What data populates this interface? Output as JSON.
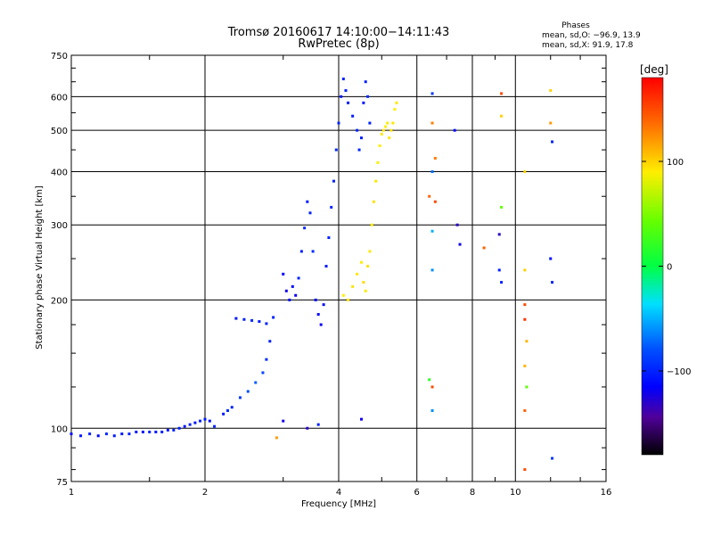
{
  "chart_data": {
    "type": "scatter",
    "title": "Tromsø 20160617 14:10:00−14:11:43",
    "subtitle": "RwPretec (8p)",
    "xlabel": "Frequency [MHz]",
    "ylabel": "Stationary phase Virtual Height [km]",
    "x_scale": "log",
    "y_scale": "log",
    "xlim": [
      1,
      16
    ],
    "ylim": [
      75,
      750
    ],
    "x_ticks": [
      1,
      2,
      4,
      6,
      8,
      10,
      16
    ],
    "y_ticks": [
      75,
      100,
      200,
      300,
      400,
      500,
      600,
      750
    ],
    "grid": true,
    "phases_box": {
      "title": "Phases",
      "line1": "mean, sd,O: −96.9, 13.9",
      "line2": "mean, sd,X:  91.9, 17.8"
    },
    "colorbar": {
      "label": "[deg]",
      "range": [
        -180,
        180
      ],
      "ticks": [
        100,
        0,
        -100
      ]
    },
    "series": [
      {
        "description": "O-mode traces (phase ≈ −100°)",
        "points": [
          [
            1.0,
            97,
            -110
          ],
          [
            1.05,
            96,
            -105
          ],
          [
            1.1,
            97,
            -100
          ],
          [
            1.15,
            96,
            -112
          ],
          [
            1.2,
            97,
            -98
          ],
          [
            1.25,
            96,
            -104
          ],
          [
            1.3,
            97,
            -106
          ],
          [
            1.35,
            97,
            -100
          ],
          [
            1.4,
            98,
            -103
          ],
          [
            1.45,
            98,
            -108
          ],
          [
            1.5,
            98,
            -100
          ],
          [
            1.55,
            98,
            -104
          ],
          [
            1.6,
            98,
            -99
          ],
          [
            1.65,
            99,
            -106
          ],
          [
            1.7,
            99,
            -100
          ],
          [
            1.75,
            100,
            -102
          ],
          [
            1.8,
            101,
            -104
          ],
          [
            1.85,
            102,
            -100
          ],
          [
            1.9,
            103,
            -106
          ],
          [
            1.95,
            104,
            -100
          ],
          [
            2.0,
            105,
            -102
          ],
          [
            2.05,
            104,
            -108
          ],
          [
            2.1,
            101,
            -100
          ],
          [
            2.2,
            108,
            -104
          ],
          [
            2.25,
            110,
            -96
          ],
          [
            2.3,
            112,
            -100
          ],
          [
            2.4,
            118,
            -90
          ],
          [
            2.5,
            122,
            -80
          ],
          [
            2.6,
            128,
            -75
          ],
          [
            2.7,
            135,
            -85
          ],
          [
            2.75,
            145,
            -95
          ],
          [
            2.8,
            160,
            -100
          ],
          [
            2.35,
            181,
            -104
          ],
          [
            2.45,
            180,
            -100
          ],
          [
            2.55,
            179,
            -96
          ],
          [
            2.65,
            178,
            -104
          ],
          [
            2.75,
            176,
            -100
          ],
          [
            2.85,
            182,
            -100
          ],
          [
            3.0,
            230,
            -115
          ],
          [
            3.05,
            210,
            -120
          ],
          [
            3.1,
            200,
            -110
          ],
          [
            3.15,
            215,
            -112
          ],
          [
            3.2,
            205,
            -118
          ],
          [
            3.25,
            225,
            -100
          ],
          [
            3.3,
            260,
            -102
          ],
          [
            3.35,
            295,
            -98
          ],
          [
            3.4,
            340,
            -104
          ],
          [
            3.45,
            320,
            -100
          ],
          [
            3.5,
            260,
            -96
          ],
          [
            3.55,
            200,
            -110
          ],
          [
            3.6,
            185,
            -112
          ],
          [
            3.65,
            175,
            -118
          ],
          [
            3.7,
            195,
            -110
          ],
          [
            3.75,
            240,
            -104
          ],
          [
            3.8,
            280,
            -100
          ],
          [
            3.85,
            330,
            -98
          ],
          [
            3.9,
            380,
            -100
          ],
          [
            3.95,
            450,
            -96
          ],
          [
            4.0,
            520,
            -100
          ],
          [
            4.05,
            600,
            -104
          ],
          [
            4.1,
            660,
            -100
          ],
          [
            4.15,
            620,
            -98
          ],
          [
            4.2,
            580,
            -102
          ],
          [
            4.3,
            540,
            -104
          ],
          [
            4.4,
            500,
            -100
          ],
          [
            4.45,
            450,
            -98
          ],
          [
            4.5,
            480,
            -102
          ],
          [
            4.55,
            580,
            -104
          ],
          [
            4.6,
            650,
            -100
          ],
          [
            4.65,
            600,
            -96
          ],
          [
            4.7,
            520,
            -100
          ]
        ]
      },
      {
        "description": "X-mode traces (phase ≈ +90°)",
        "points": [
          [
            4.1,
            205,
            90
          ],
          [
            4.2,
            200,
            92
          ],
          [
            4.3,
            215,
            94
          ],
          [
            4.4,
            230,
            92
          ],
          [
            4.5,
            245,
            90
          ],
          [
            4.55,
            220,
            96
          ],
          [
            4.6,
            210,
            92
          ],
          [
            4.65,
            240,
            94
          ],
          [
            4.7,
            260,
            92
          ],
          [
            4.75,
            300,
            90
          ],
          [
            4.8,
            340,
            94
          ],
          [
            4.85,
            380,
            92
          ],
          [
            4.9,
            420,
            88
          ],
          [
            4.95,
            460,
            90
          ],
          [
            5.0,
            490,
            92
          ],
          [
            5.05,
            500,
            94
          ],
          [
            5.1,
            510,
            90
          ],
          [
            5.15,
            520,
            88
          ],
          [
            5.2,
            480,
            92
          ],
          [
            5.25,
            500,
            94
          ],
          [
            5.3,
            520,
            92
          ],
          [
            5.35,
            560,
            90
          ],
          [
            5.4,
            580,
            92
          ]
        ]
      },
      {
        "description": "scattered echoes",
        "points": [
          [
            6.5,
            610,
            -90
          ],
          [
            6.5,
            520,
            130
          ],
          [
            6.6,
            430,
            130
          ],
          [
            6.5,
            400,
            -70
          ],
          [
            6.4,
            350,
            140
          ],
          [
            6.6,
            340,
            150
          ],
          [
            6.5,
            290,
            -50
          ],
          [
            6.5,
            235,
            -60
          ],
          [
            6.4,
            130,
            20
          ],
          [
            6.5,
            125,
            150
          ],
          [
            6.5,
            110,
            -60
          ],
          [
            7.3,
            500,
            -110
          ],
          [
            7.4,
            300,
            -130
          ],
          [
            7.5,
            270,
            -120
          ],
          [
            8.5,
            265,
            140
          ],
          [
            9.3,
            610,
            150
          ],
          [
            9.3,
            540,
            100
          ],
          [
            9.3,
            330,
            40
          ],
          [
            9.2,
            285,
            -130
          ],
          [
            9.2,
            235,
            -100
          ],
          [
            9.3,
            220,
            -100
          ],
          [
            10.5,
            400,
            100
          ],
          [
            10.5,
            235,
            100
          ],
          [
            10.5,
            195,
            150
          ],
          [
            10.5,
            180,
            160
          ],
          [
            10.6,
            160,
            110
          ],
          [
            10.5,
            140,
            110
          ],
          [
            10.6,
            125,
            40
          ],
          [
            10.5,
            110,
            140
          ],
          [
            10.5,
            80,
            150
          ],
          [
            12.0,
            620,
            100
          ],
          [
            12.0,
            520,
            120
          ],
          [
            12.1,
            470,
            -100
          ],
          [
            12.0,
            250,
            -110
          ],
          [
            12.1,
            220,
            -100
          ],
          [
            12.1,
            85,
            -90
          ],
          [
            3.4,
            100,
            -130
          ],
          [
            3.0,
            104,
            -120
          ],
          [
            2.9,
            95,
            120
          ],
          [
            3.6,
            102,
            -100
          ],
          [
            4.5,
            105,
            -120
          ]
        ]
      }
    ]
  }
}
